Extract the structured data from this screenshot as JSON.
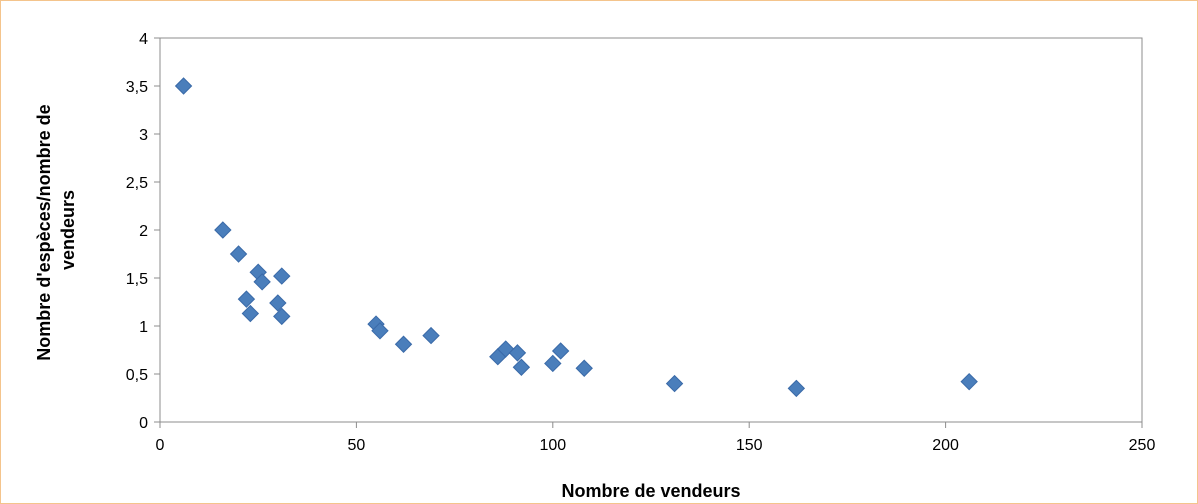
{
  "chart_data": {
    "type": "scatter",
    "title": "",
    "xlabel": "Nombre de vendeurs",
    "ylabel": "Nombre d'espèces/nombre de vendeurs",
    "ylabel_lines": [
      "Nombre d'espèces/nombre de",
      "vendeurs"
    ],
    "xlim": [
      0,
      250
    ],
    "ylim": [
      0,
      4
    ],
    "x_ticks": [
      0,
      50,
      100,
      150,
      200,
      250
    ],
    "x_tick_labels": [
      "0",
      "50",
      "100",
      "150",
      "200",
      "250"
    ],
    "y_ticks": [
      0,
      0.5,
      1,
      1.5,
      2,
      2.5,
      3,
      3.5,
      4
    ],
    "y_tick_labels": [
      "0",
      "0,5",
      "1",
      "1,5",
      "2",
      "2,5",
      "3",
      "3,5",
      "4"
    ],
    "grid": false,
    "legend": "none",
    "marker": "diamond",
    "marker_color": "#4a7ebb",
    "marker_edge_color": "#3a6aa8",
    "series": [
      {
        "points": [
          [
            6,
            3.5
          ],
          [
            16,
            2.0
          ],
          [
            20,
            1.75
          ],
          [
            25,
            1.56
          ],
          [
            26,
            1.46
          ],
          [
            31,
            1.52
          ],
          [
            22,
            1.28
          ],
          [
            30,
            1.24
          ],
          [
            23,
            1.13
          ],
          [
            31,
            1.1
          ],
          [
            55,
            1.02
          ],
          [
            56,
            0.95
          ],
          [
            69,
            0.9
          ],
          [
            62,
            0.81
          ],
          [
            86,
            0.68
          ],
          [
            88,
            0.76
          ],
          [
            91,
            0.72
          ],
          [
            92,
            0.57
          ],
          [
            100,
            0.61
          ],
          [
            102,
            0.74
          ],
          [
            108,
            0.56
          ],
          [
            131,
            0.4
          ],
          [
            162,
            0.35
          ],
          [
            206,
            0.42
          ]
        ]
      }
    ]
  }
}
